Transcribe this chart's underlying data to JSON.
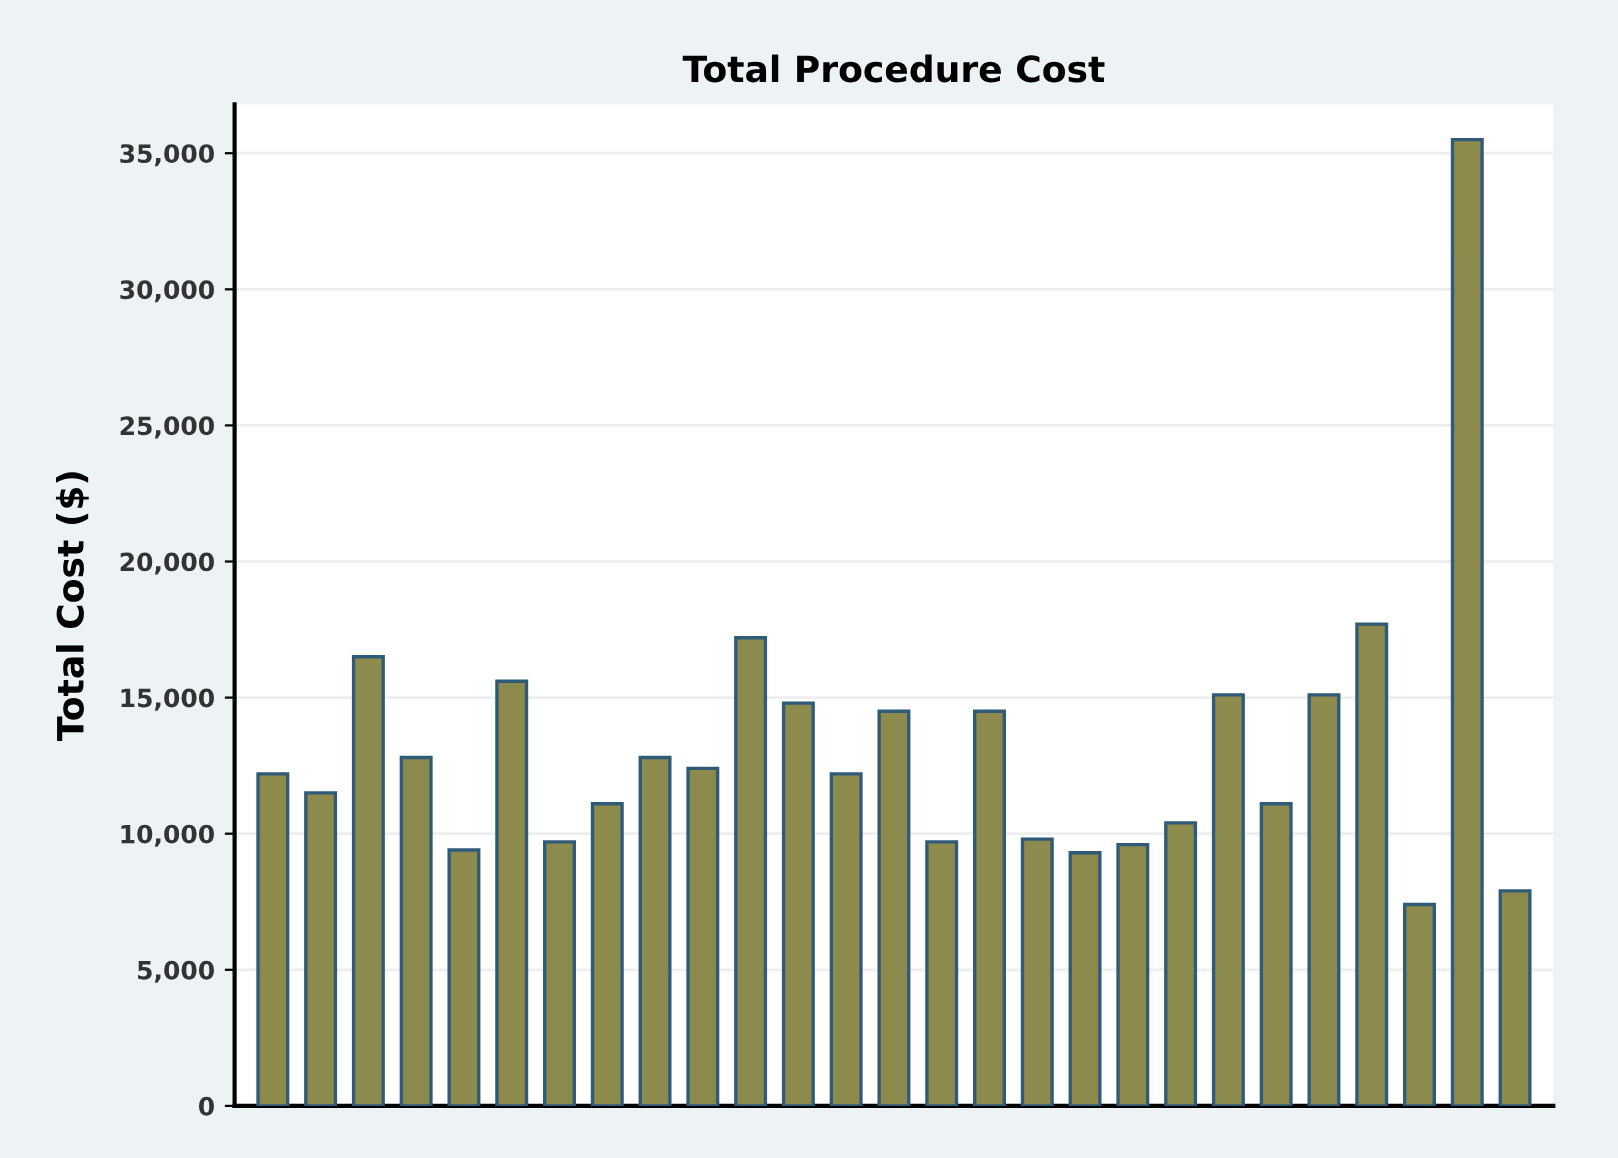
{
  "chart_data": {
    "type": "bar",
    "title": "Total Procedure Cost",
    "ylabel": "Total Cost ($)",
    "categories": [
      null,
      null,
      null,
      null,
      null,
      null,
      null,
      null,
      null,
      null,
      null,
      null,
      null,
      null,
      null,
      null,
      null,
      null,
      null,
      null,
      null,
      null,
      null,
      null,
      null,
      null,
      null
    ],
    "values": [
      12200,
      11500,
      16500,
      12800,
      9400,
      15600,
      9700,
      11100,
      12800,
      12400,
      17200,
      14800,
      12200,
      14500,
      9700,
      14500,
      9800,
      9300,
      9600,
      10400,
      15100,
      11100,
      15100,
      17700,
      7400,
      35500,
      7900
    ],
    "color": "#8c8a4c",
    "ylim": [
      0,
      36800
    ],
    "yticks": [
      {
        "value": 0,
        "label": "0"
      },
      {
        "value": 5000,
        "label": "5,000"
      },
      {
        "value": 10000,
        "label": "10,000"
      },
      {
        "value": 15000,
        "label": "15,000"
      },
      {
        "value": 20000,
        "label": "20,000"
      },
      {
        "value": 25000,
        "label": "25,000"
      },
      {
        "value": 30000,
        "label": "30,000"
      },
      {
        "value": 35000,
        "label": "35,000"
      }
    ],
    "grid": "y"
  }
}
